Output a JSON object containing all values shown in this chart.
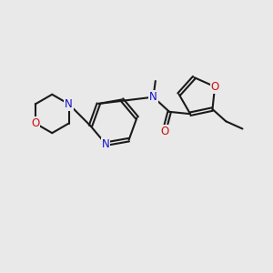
{
  "bg_color": "#e9e9e9",
  "bond_color": "#1a1a1a",
  "bond_width": 1.5,
  "atom_colors": {
    "N": "#1010cc",
    "O": "#cc1010"
  },
  "font_size": 8.5,
  "figsize": [
    3.0,
    3.0
  ],
  "dpi": 100
}
